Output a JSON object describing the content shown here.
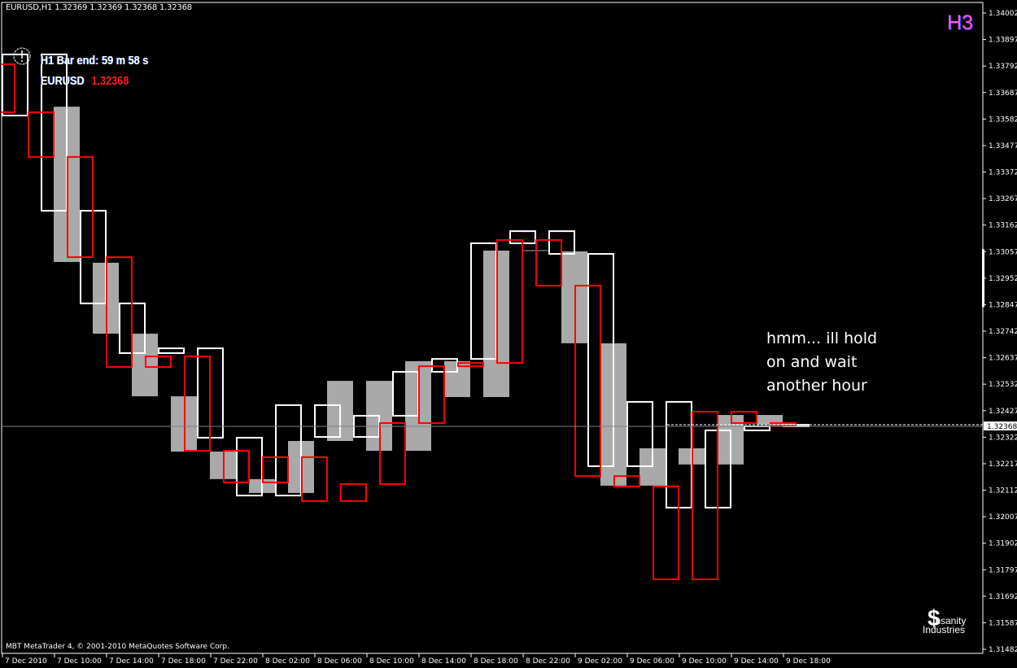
{
  "window": {
    "header": "EURUSD,H1  1.32369 1.32369 1.32368 1.32368",
    "period_badge": "H3",
    "bar_end": "H1 Bar end: 59 m 58 s",
    "symbol": "EURUSD",
    "symbol_price": "1.32368",
    "comment_lines": [
      "hmm... ill hold",
      "on and wait",
      "another hour"
    ],
    "copyright": "MBT MetaTrader 4, © 2001-2010 MetaQuotes Software Corp.",
    "watermark": {
      "line1": "Insanity",
      "line2": "Industries",
      "glyph": "$"
    },
    "clock_icon": "clock-icon"
  },
  "chart_data": {
    "type": "boxes",
    "symbol": "EURUSD",
    "timeframe": "H1",
    "bid_price": 1.32368,
    "bid_label": "1.32368",
    "ylim": [
      1.31482,
      1.34002
    ],
    "y_ticks": [
      "1.34002",
      "1.33897",
      "1.33792",
      "1.33687",
      "1.33582",
      "1.33477",
      "1.33372",
      "1.33267",
      "1.33162",
      "1.33057",
      "1.32952",
      "1.32847",
      "1.32742",
      "1.32637",
      "1.32532",
      "1.32427",
      "1.32322",
      "1.32217",
      "1.32112",
      "1.32007",
      "1.31902",
      "1.31797",
      "1.31692",
      "1.31587",
      "1.31482"
    ],
    "x_ticks": [
      {
        "time": "2010-12-07 06:00",
        "label": "7 Dec 2010"
      },
      {
        "time": "2010-12-07 10:00",
        "label": "7 Dec 10:00"
      },
      {
        "time": "2010-12-07 14:00",
        "label": "7 Dec 14:00"
      },
      {
        "time": "2010-12-07 18:00",
        "label": "7 Dec 18:00"
      },
      {
        "time": "2010-12-07 22:00",
        "label": "7 Dec 22:00"
      },
      {
        "time": "2010-12-08 02:00",
        "label": "8 Dec 02:00"
      },
      {
        "time": "2010-12-08 06:00",
        "label": "8 Dec 06:00"
      },
      {
        "time": "2010-12-08 10:00",
        "label": "8 Dec 10:00"
      },
      {
        "time": "2010-12-08 14:00",
        "label": "8 Dec 14:00"
      },
      {
        "time": "2010-12-08 18:00",
        "label": "8 Dec 18:00"
      },
      {
        "time": "2010-12-08 22:00",
        "label": "8 Dec 22:00"
      },
      {
        "time": "2010-12-09 02:00",
        "label": "9 Dec 02:00"
      },
      {
        "time": "2010-12-09 06:00",
        "label": "9 Dec 06:00"
      },
      {
        "time": "2010-12-09 10:00",
        "label": "9 Dec 10:00"
      },
      {
        "time": "2010-12-09 14:00",
        "label": "9 Dec 14:00"
      },
      {
        "time": "2010-12-09 18:00",
        "label": "9 Dec 18:00"
      }
    ],
    "box_span_hours": 2,
    "series": [
      {
        "style": "filled",
        "color": "#a9a9a9",
        "boxes": [
          [
            "2010-12-07 10:00",
            1.33631,
            1.33016
          ],
          [
            "2010-12-07 13:00",
            1.33013,
            1.32732
          ],
          [
            "2010-12-07 16:00",
            1.32732,
            1.32484
          ],
          [
            "2010-12-07 19:00",
            1.32484,
            1.32265
          ],
          [
            "2010-12-07 22:00",
            1.32265,
            1.32156
          ],
          [
            "2010-12-08 01:00",
            1.32156,
            1.32101
          ],
          [
            "2010-12-08 04:00",
            1.32307,
            1.32101
          ],
          [
            "2010-12-08 07:00",
            1.32545,
            1.32307
          ],
          [
            "2010-12-08 10:00",
            1.32545,
            1.32268
          ],
          [
            "2010-12-08 13:00",
            1.32623,
            1.32268
          ],
          [
            "2010-12-08 16:00",
            1.32623,
            1.32481
          ],
          [
            "2010-12-08 19:00",
            1.33061,
            1.32481
          ],
          [
            "2010-12-08 22:00",
            1.33061,
            1.33061
          ],
          [
            "2010-12-09 01:00",
            1.33058,
            1.32694
          ],
          [
            "2010-12-09 04:00",
            1.32694,
            1.3213
          ],
          [
            "2010-12-09 07:00",
            1.32278,
            1.3213
          ],
          [
            "2010-12-09 10:00",
            1.32278,
            1.32214
          ],
          [
            "2010-12-09 13:00",
            1.3241,
            1.32214
          ],
          [
            "2010-12-09 16:00",
            1.3241,
            1.32371
          ]
        ]
      },
      {
        "style": "outline",
        "color": "#ffffff",
        "boxes": [
          [
            "2010-12-07 06:00",
            1.33838,
            1.33596
          ],
          [
            "2010-12-07 09:00",
            1.33838,
            1.33219
          ],
          [
            "2010-12-07 12:00",
            1.33219,
            1.32852
          ],
          [
            "2010-12-07 15:00",
            1.32852,
            1.32655
          ],
          [
            "2010-12-07 18:00",
            1.32674,
            1.32655
          ],
          [
            "2010-12-07 21:00",
            1.32674,
            1.3232
          ],
          [
            "2010-12-08 00:00",
            1.3232,
            1.32091
          ],
          [
            "2010-12-08 03:00",
            1.32449,
            1.32091
          ],
          [
            "2010-12-08 06:00",
            1.32449,
            1.32323
          ],
          [
            "2010-12-08 09:00",
            1.32407,
            1.32323
          ],
          [
            "2010-12-08 12:00",
            1.32581,
            1.32407
          ],
          [
            "2010-12-08 15:00",
            1.32632,
            1.32581
          ],
          [
            "2010-12-08 18:00",
            1.3309,
            1.32632
          ],
          [
            "2010-12-08 21:00",
            1.33138,
            1.3309
          ],
          [
            "2010-12-09 00:00",
            1.33138,
            1.33048
          ],
          [
            "2010-12-09 03:00",
            1.33048,
            1.32207
          ],
          [
            "2010-12-09 06:00",
            1.32462,
            1.32207
          ],
          [
            "2010-12-09 09:00",
            1.32462,
            1.32043
          ],
          [
            "2010-12-09 12:00",
            1.32349,
            1.32043
          ],
          [
            "2010-12-09 15:00",
            1.32365,
            1.32349
          ],
          [
            "2010-12-09 18:00",
            1.32371,
            1.32365
          ]
        ]
      },
      {
        "style": "outline",
        "color": "#ff0000",
        "boxes": [
          [
            "2010-12-07 05:00",
            1.33799,
            1.33609
          ],
          [
            "2010-12-07 08:00",
            1.33609,
            1.33432
          ],
          [
            "2010-12-07 11:00",
            1.33432,
            1.33035
          ],
          [
            "2010-12-07 14:00",
            1.33035,
            1.326
          ],
          [
            "2010-12-07 17:00",
            1.32642,
            1.326
          ],
          [
            "2010-12-07 20:00",
            1.32642,
            1.32268
          ],
          [
            "2010-12-07 23:00",
            1.32268,
            1.32143
          ],
          [
            "2010-12-08 02:00",
            1.32243,
            1.32143
          ],
          [
            "2010-12-08 05:00",
            1.32243,
            1.32069
          ],
          [
            "2010-12-08 08:00",
            1.32136,
            1.32069
          ],
          [
            "2010-12-08 11:00",
            1.32378,
            1.32136
          ],
          [
            "2010-12-08 14:00",
            1.32603,
            1.32378
          ],
          [
            "2010-12-08 17:00",
            1.32616,
            1.32603
          ],
          [
            "2010-12-08 20:00",
            1.33103,
            1.32616
          ],
          [
            "2010-12-08 23:00",
            1.33103,
            1.32922
          ],
          [
            "2010-12-09 02:00",
            1.32922,
            1.32168
          ],
          [
            "2010-12-09 05:00",
            1.32168,
            1.32127
          ],
          [
            "2010-12-09 08:00",
            1.32127,
            1.31759
          ],
          [
            "2010-12-09 11:00",
            1.32423,
            1.31759
          ],
          [
            "2010-12-09 14:00",
            1.32423,
            1.32378
          ],
          [
            "2010-12-09 17:00",
            1.32378,
            1.32368
          ]
        ]
      }
    ],
    "colors": {
      "background": "#000000",
      "bid_line": "#7a8590",
      "axis": "#ffffff",
      "badge": "#ff55dd"
    }
  }
}
